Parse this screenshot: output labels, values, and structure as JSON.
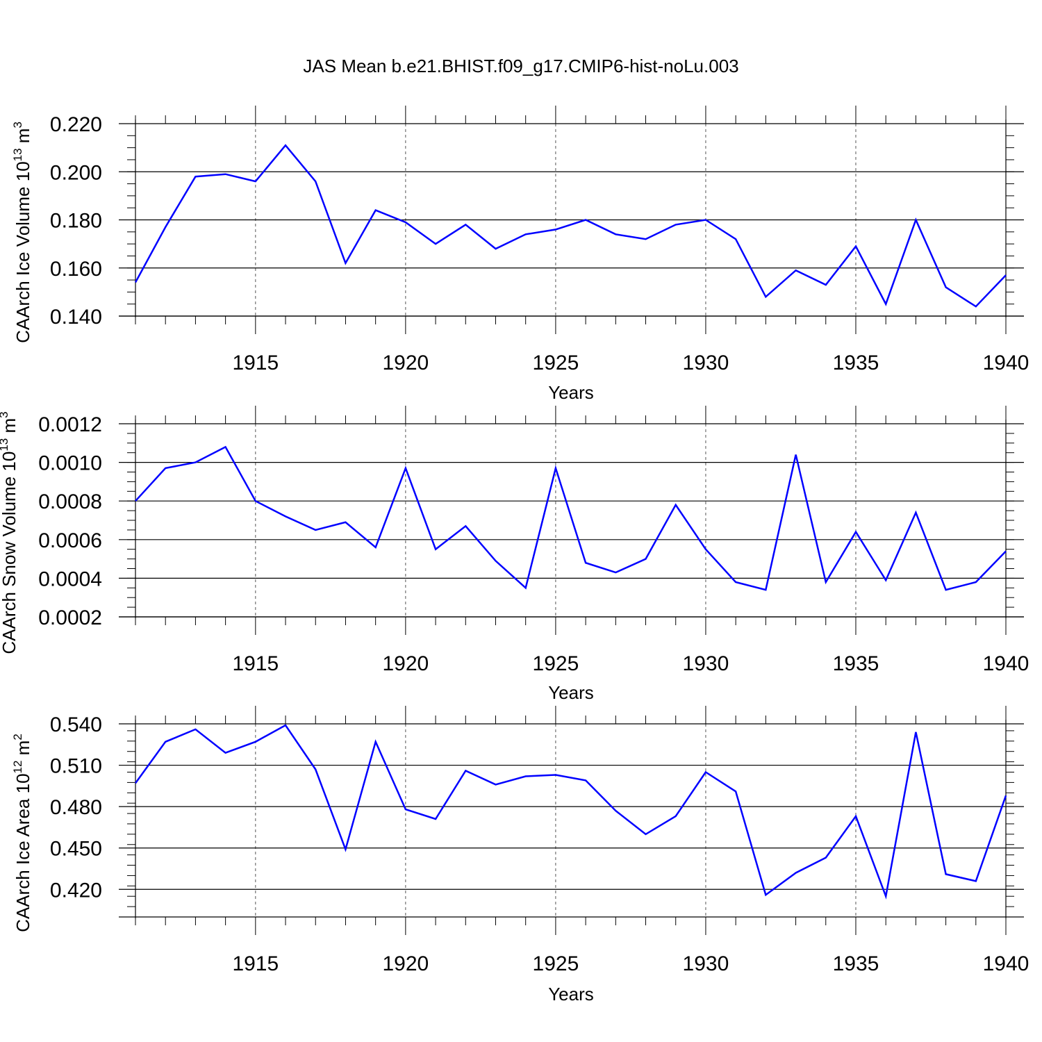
{
  "title": "JAS Mean b.e21.BHIST.f09_g17.CMIP6-hist-noLu.003",
  "colors": {
    "line": "#0000ff",
    "axis": "#000000",
    "grid": "#555555"
  },
  "chart_data": [
    {
      "type": "line",
      "ylabel_main": "CAArch Ice Volume 10",
      "ylabel_exp": "13",
      "ylabel_unit": "m",
      "ylabel_unit_exp": "3",
      "xlabel": "Years",
      "xlim": [
        1911,
        1940
      ],
      "ylim": [
        0.14,
        0.22
      ],
      "grid_x": true,
      "xticks": [
        "1915",
        "1920",
        "1925",
        "1930",
        "1935",
        "1940"
      ],
      "yticks": [
        "0.140",
        "0.160",
        "0.180",
        "0.200",
        "0.220"
      ],
      "series": [
        {
          "x": [
            1911,
            1912,
            1913,
            1914,
            1915,
            1916,
            1917,
            1918,
            1919,
            1920,
            1921,
            1922,
            1923,
            1924,
            1925,
            1926,
            1927,
            1928,
            1929,
            1930,
            1931,
            1932,
            1933,
            1934,
            1935,
            1936,
            1937,
            1938,
            1939,
            1940
          ],
          "values": [
            0.154,
            0.177,
            0.198,
            0.199,
            0.196,
            0.211,
            0.196,
            0.162,
            0.184,
            0.179,
            0.17,
            0.178,
            0.168,
            0.174,
            0.176,
            0.18,
            0.174,
            0.172,
            0.178,
            0.18,
            0.172,
            0.148,
            0.159,
            0.153,
            0.169,
            0.145,
            0.18,
            0.152,
            0.144,
            0.157
          ]
        }
      ]
    },
    {
      "type": "line",
      "ylabel_main": "CAArch Snow Volume 10",
      "ylabel_exp": "13",
      "ylabel_unit": "m",
      "ylabel_unit_exp": "3",
      "xlabel": "Years",
      "xlim": [
        1911,
        1940
      ],
      "ylim": [
        0.0002,
        0.0012
      ],
      "grid_x": true,
      "xticks": [
        "1915",
        "1920",
        "1925",
        "1930",
        "1935",
        "1940"
      ],
      "yticks": [
        "0.0002",
        "0.0004",
        "0.0006",
        "0.0008",
        "0.0010",
        "0.0012"
      ],
      "series": [
        {
          "x": [
            1911,
            1912,
            1913,
            1914,
            1915,
            1916,
            1917,
            1918,
            1919,
            1920,
            1921,
            1922,
            1923,
            1924,
            1925,
            1926,
            1927,
            1928,
            1929,
            1930,
            1931,
            1932,
            1933,
            1934,
            1935,
            1936,
            1937,
            1938,
            1939,
            1940
          ],
          "values": [
            0.0008,
            0.00097,
            0.001,
            0.00108,
            0.0008,
            0.00072,
            0.00065,
            0.00069,
            0.00056,
            0.00097,
            0.00055,
            0.00067,
            0.00049,
            0.00035,
            0.00097,
            0.00048,
            0.00043,
            0.0005,
            0.00078,
            0.00055,
            0.00038,
            0.00034,
            0.00104,
            0.00038,
            0.00064,
            0.00039,
            0.00074,
            0.00034,
            0.00038,
            0.00054
          ]
        }
      ]
    },
    {
      "type": "line",
      "ylabel_main": "CAArch Ice Area 10",
      "ylabel_exp": "12",
      "ylabel_unit": "m",
      "ylabel_unit_exp": "2",
      "xlabel": "Years",
      "xlim": [
        1911,
        1940
      ],
      "ylim": [
        0.4,
        0.54
      ],
      "grid_x": true,
      "xticks": [
        "1915",
        "1920",
        "1925",
        "1930",
        "1935",
        "1940"
      ],
      "yticks": [
        "0.420",
        "0.450",
        "0.480",
        "0.510",
        "0.540"
      ],
      "series": [
        {
          "x": [
            1911,
            1912,
            1913,
            1914,
            1915,
            1916,
            1917,
            1918,
            1919,
            1920,
            1921,
            1922,
            1923,
            1924,
            1925,
            1926,
            1927,
            1928,
            1929,
            1930,
            1931,
            1932,
            1933,
            1934,
            1935,
            1936,
            1937,
            1938,
            1939,
            1940
          ],
          "values": [
            0.497,
            0.527,
            0.536,
            0.519,
            0.527,
            0.539,
            0.507,
            0.449,
            0.527,
            0.478,
            0.471,
            0.506,
            0.496,
            0.502,
            0.503,
            0.499,
            0.477,
            0.46,
            0.473,
            0.505,
            0.491,
            0.416,
            0.432,
            0.443,
            0.473,
            0.415,
            0.534,
            0.431,
            0.426,
            0.488
          ]
        }
      ]
    }
  ]
}
